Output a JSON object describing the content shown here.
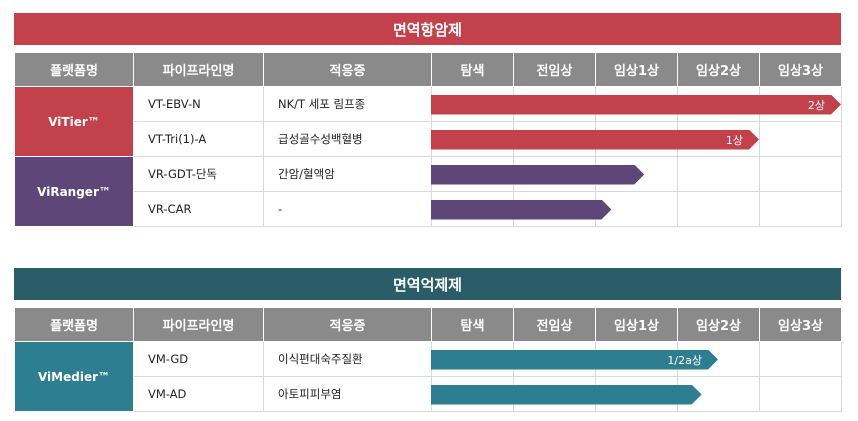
{
  "colors": {
    "red": "#c2414b",
    "purple": "#5e4679",
    "teal": "#2e7e91",
    "dark_teal": "#2b5d68",
    "header_gray": "#8a8a8a"
  },
  "headers": [
    "플랫폼명",
    "파이프라인명",
    "적응증",
    "탐색",
    "전임상",
    "임상1상",
    "임상2상",
    "임상3상"
  ],
  "sections": [
    {
      "title": "면역항암제",
      "platforms": [
        {
          "name": "ViTier™",
          "color": "red",
          "rows": [
            {
              "pipeline": "VT-EBV-N",
              "indication": "NK/T 세포 림프종",
              "progress_stage": 5,
              "label": "2상"
            },
            {
              "pipeline": "VT-Tri(1)-A",
              "indication": "급성골수성백혈병",
              "progress_stage": 4,
              "label": "1상"
            }
          ]
        },
        {
          "name": "ViRanger™",
          "color": "purple",
          "rows": [
            {
              "pipeline": "VR-GDT-단독",
              "indication": "간암/혈액암",
              "progress_stage": 2.6,
              "label": ""
            },
            {
              "pipeline": "VR-CAR",
              "indication": "-",
              "progress_stage": 2.2,
              "label": ""
            }
          ]
        }
      ]
    },
    {
      "title": "면역억제제",
      "platforms": [
        {
          "name": "ViMedier™",
          "color": "teal",
          "rows": [
            {
              "pipeline": "VM-GD",
              "indication": "이식편대숙주질환",
              "progress_stage": 3.5,
              "label": "1/2a상"
            },
            {
              "pipeline": "VM-AD",
              "indication": "아토피피부염",
              "progress_stage": 3.3,
              "label": ""
            }
          ]
        }
      ]
    }
  ]
}
